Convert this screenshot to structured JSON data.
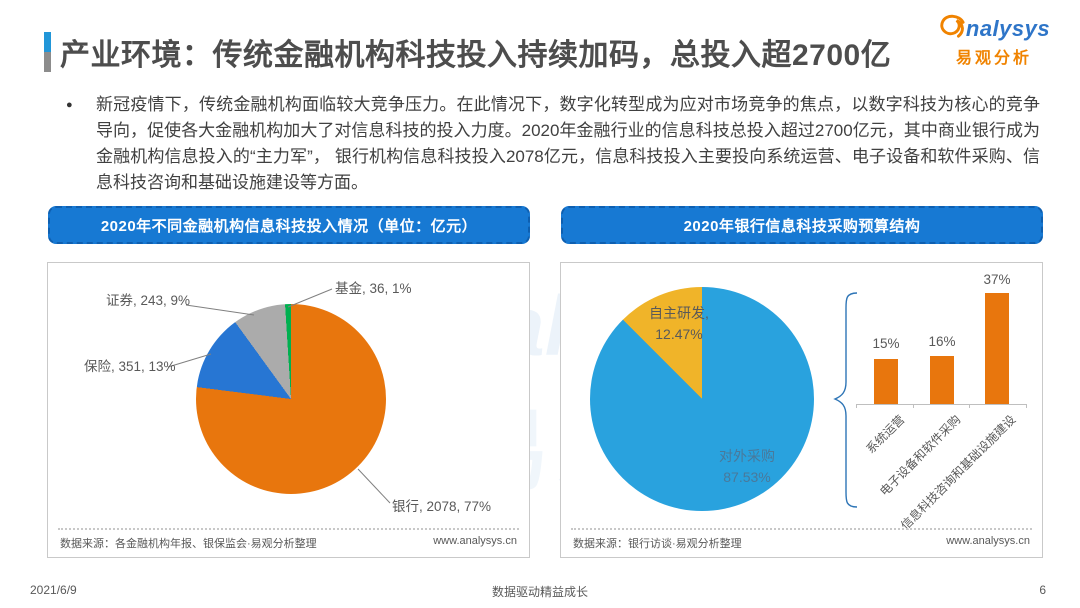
{
  "header": {
    "title": "产业环境：传统金融机构科技投入持续加码，总投入超2700亿",
    "logo_brand": "nalysys",
    "logo_cn": "易观分析"
  },
  "summary": {
    "bullet": "●",
    "text": "新冠疫情下，传统金融机构面临较大竞争压力。在此情况下，数字化转型成为应对市场竞争的焦点，以数字科技为核心的竞争导向，促使各大金融机构加大了对信息科技的投入力度。2020年金融行业的信息科技总投入超过2700亿元，其中商业银行成为金融机构信息投入的“主力军”， 银行机构信息科技投入2078亿元，信息科技投入主要投向系统运营、电子设备和软件采购、信息科技咨询和基础设施建设等方面。"
  },
  "colors": {
    "accent_blue": "#1779D3",
    "logo_orange": "#F08300",
    "logo_blue": "#2E75C8"
  },
  "watermark": {
    "brand": "analysys",
    "cn": "易观"
  },
  "chart_data": [
    {
      "type": "pie",
      "title": "2020年不同金融机构信息科技投入情况（单位：亿元）",
      "unit": "亿元",
      "slices": [
        {
          "label": "银行",
          "value": 2078,
          "pct": 77,
          "color": "#E8760D",
          "display": "银行, 2078, 77%"
        },
        {
          "label": "保险",
          "value": 351,
          "pct": 13,
          "color": "#2776D3",
          "display": "保险, 351, 13%"
        },
        {
          "label": "证券",
          "value": 243,
          "pct": 9,
          "color": "#ABABAB",
          "display": "证券, 243, 9%"
        },
        {
          "label": "基金",
          "value": 36,
          "pct": 1,
          "color": "#00B050",
          "display": "基金, 36, 1%"
        }
      ],
      "legend_position": "callout-labels",
      "source": "数据来源：各金融机构年报、银保监会·易观分析整理",
      "website": "www.analysys.cn"
    },
    {
      "type": "pie+bar",
      "title": "2020年银行信息科技采购预算结构",
      "pie_slices": [
        {
          "label": "对外采购",
          "pct": 87.53,
          "color": "#29A2DE",
          "display_label": "对外采购",
          "display_pct": "87.53%"
        },
        {
          "label": "自主研发",
          "pct": 12.47,
          "color": "#F0B429",
          "display_label": "自主研发,",
          "display_pct": "12.47%"
        }
      ],
      "bars": {
        "categories": [
          "系统运营",
          "电子设备和软件采购",
          "信息科技咨询和基础设施建设"
        ],
        "values": [
          15,
          16,
          37
        ],
        "value_labels": [
          "15%",
          "16%",
          "37%"
        ],
        "color": "#E8760D",
        "note": "对外采购结构展开"
      },
      "source": "数据来源：银行访谈·易观分析整理",
      "website": "www.analysys.cn"
    }
  ],
  "footer": {
    "date": "2021/6/9",
    "slogan": "数据驱动精益成长",
    "page": "6"
  }
}
